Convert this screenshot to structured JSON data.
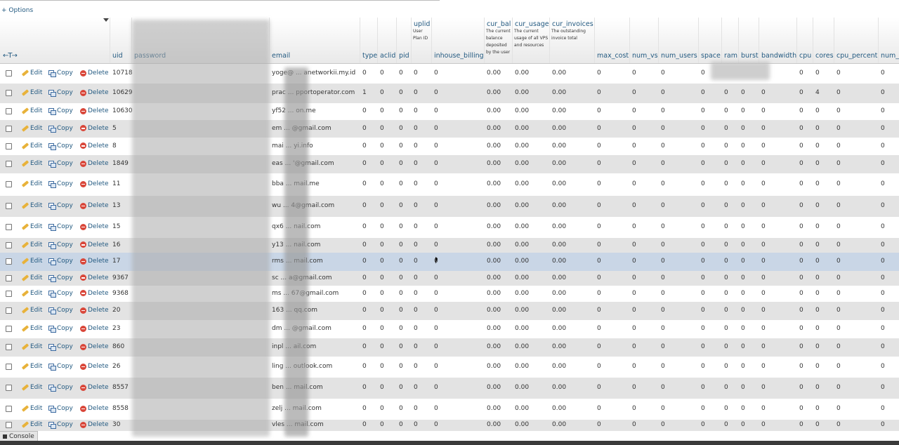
{
  "options_label": "+ Options",
  "columns": [
    {
      "key": "uid",
      "name": "uid",
      "comment": ""
    },
    {
      "key": "password",
      "name": "password",
      "comment": ""
    },
    {
      "key": "email",
      "name": "email",
      "comment": ""
    },
    {
      "key": "type",
      "name": "type",
      "comment": ""
    },
    {
      "key": "aclid",
      "name": "aclid",
      "comment": ""
    },
    {
      "key": "pid",
      "name": "pid",
      "comment": ""
    },
    {
      "key": "uplid",
      "name": "uplid",
      "comment": "User Plan ID"
    },
    {
      "key": "inhouse_billing",
      "name": "inhouse_billing",
      "comment": ""
    },
    {
      "key": "cur_bal",
      "name": "cur_bal",
      "comment": "The current balance deposited by the user"
    },
    {
      "key": "cur_usage",
      "name": "cur_usage",
      "comment": "The current usage of all VPS and resources"
    },
    {
      "key": "cur_invoices",
      "name": "cur_invoices",
      "comment": "The outstanding invoice total"
    },
    {
      "key": "max_cost",
      "name": "max_cost",
      "comment": ""
    },
    {
      "key": "num_vs",
      "name": "num_vs",
      "comment": ""
    },
    {
      "key": "num_users",
      "name": "num_users",
      "comment": ""
    },
    {
      "key": "space",
      "name": "space",
      "comment": ""
    },
    {
      "key": "ram",
      "name": "ram",
      "comment": ""
    },
    {
      "key": "burst",
      "name": "burst",
      "comment": ""
    },
    {
      "key": "bandwidth",
      "name": "bandwidth",
      "comment": ""
    },
    {
      "key": "cpu",
      "name": "cpu",
      "comment": ""
    },
    {
      "key": "cores",
      "name": "cores",
      "comment": ""
    },
    {
      "key": "cpu_percent",
      "name": "cpu_percent",
      "comment": ""
    },
    {
      "key": "num_",
      "name": "num_",
      "comment": ""
    }
  ],
  "actions": {
    "edit": "Edit",
    "copy": "Copy",
    "delete": "Delete"
  },
  "rows": [
    {
      "uid": "10718",
      "email": "yoge@ ... anetworkii.my.id",
      "type": "0",
      "aclid": "0",
      "pid": "0",
      "uplid": "0",
      "inhouse_billing": "0",
      "cur_bal": "0.00",
      "cur_usage": "0.00",
      "cur_invoices": "0.00",
      "max_cost": "0",
      "num_vs": "0",
      "num_users": "0",
      "space": "0",
      "ram": "",
      "burst": "",
      "bandwidth": "",
      "cpu": "0",
      "cores": "0",
      "cpu_percent": "0",
      "num_": "0"
    },
    {
      "uid": "10629",
      "email": "prac ... pportoperator.com",
      "type": "1",
      "aclid": "0",
      "pid": "0",
      "uplid": "0",
      "inhouse_billing": "0",
      "cur_bal": "0.00",
      "cur_usage": "0.00",
      "cur_invoices": "0.00",
      "max_cost": "0",
      "num_vs": "0",
      "num_users": "0",
      "space": "0",
      "ram": "0",
      "burst": "0",
      "bandwidth": "0",
      "cpu": "0",
      "cores": "4",
      "cpu_percent": "0",
      "num_": "0"
    },
    {
      "uid": "10630",
      "email": "yf52 ... on.me",
      "type": "0",
      "aclid": "0",
      "pid": "0",
      "uplid": "0",
      "inhouse_billing": "0",
      "cur_bal": "0.00",
      "cur_usage": "0.00",
      "cur_invoices": "0.00",
      "max_cost": "0",
      "num_vs": "0",
      "num_users": "0",
      "space": "0",
      "ram": "0",
      "burst": "0",
      "bandwidth": "0",
      "cpu": "0",
      "cores": "0",
      "cpu_percent": "0",
      "num_": "0"
    },
    {
      "uid": "5",
      "email": "em ... @gmail.com",
      "type": "0",
      "aclid": "0",
      "pid": "0",
      "uplid": "0",
      "inhouse_billing": "0",
      "cur_bal": "0.00",
      "cur_usage": "0.00",
      "cur_invoices": "0.00",
      "max_cost": "0",
      "num_vs": "0",
      "num_users": "0",
      "space": "0",
      "ram": "0",
      "burst": "0",
      "bandwidth": "0",
      "cpu": "0",
      "cores": "0",
      "cpu_percent": "0",
      "num_": "0"
    },
    {
      "uid": "8",
      "email": "mai ... yi.info",
      "type": "0",
      "aclid": "0",
      "pid": "0",
      "uplid": "0",
      "inhouse_billing": "0",
      "cur_bal": "0.00",
      "cur_usage": "0.00",
      "cur_invoices": "0.00",
      "max_cost": "0",
      "num_vs": "0",
      "num_users": "0",
      "space": "0",
      "ram": "0",
      "burst": "0",
      "bandwidth": "0",
      "cpu": "0",
      "cores": "0",
      "cpu_percent": "0",
      "num_": "0"
    },
    {
      "uid": "1849",
      "email": "eas ... '@gmail.com",
      "type": "0",
      "aclid": "0",
      "pid": "0",
      "uplid": "0",
      "inhouse_billing": "0",
      "cur_bal": "0.00",
      "cur_usage": "0.00",
      "cur_invoices": "0.00",
      "max_cost": "0",
      "num_vs": "0",
      "num_users": "0",
      "space": "0",
      "ram": "0",
      "burst": "0",
      "bandwidth": "0",
      "cpu": "0",
      "cores": "0",
      "cpu_percent": "0",
      "num_": "0"
    },
    {
      "uid": "11",
      "email": "bba ... mail.me",
      "type": "0",
      "aclid": "0",
      "pid": "0",
      "uplid": "0",
      "inhouse_billing": "0",
      "cur_bal": "0.00",
      "cur_usage": "0.00",
      "cur_invoices": "0.00",
      "max_cost": "0",
      "num_vs": "0",
      "num_users": "0",
      "space": "0",
      "ram": "0",
      "burst": "0",
      "bandwidth": "0",
      "cpu": "0",
      "cores": "0",
      "cpu_percent": "0",
      "num_": "0"
    },
    {
      "uid": "13",
      "email": "wu ... 4@gmail.com",
      "type": "0",
      "aclid": "0",
      "pid": "0",
      "uplid": "0",
      "inhouse_billing": "0",
      "cur_bal": "0.00",
      "cur_usage": "0.00",
      "cur_invoices": "0.00",
      "max_cost": "0",
      "num_vs": "0",
      "num_users": "0",
      "space": "0",
      "ram": "0",
      "burst": "0",
      "bandwidth": "0",
      "cpu": "0",
      "cores": "0",
      "cpu_percent": "0",
      "num_": "0"
    },
    {
      "uid": "15",
      "email": "qx6 ... nail.com",
      "type": "0",
      "aclid": "0",
      "pid": "0",
      "uplid": "0",
      "inhouse_billing": "0",
      "cur_bal": "0.00",
      "cur_usage": "0.00",
      "cur_invoices": "0.00",
      "max_cost": "0",
      "num_vs": "0",
      "num_users": "0",
      "space": "0",
      "ram": "0",
      "burst": "0",
      "bandwidth": "0",
      "cpu": "0",
      "cores": "0",
      "cpu_percent": "0",
      "num_": "0"
    },
    {
      "uid": "16",
      "email": "y13 ... nail.com",
      "type": "0",
      "aclid": "0",
      "pid": "0",
      "uplid": "0",
      "inhouse_billing": "0",
      "cur_bal": "0.00",
      "cur_usage": "0.00",
      "cur_invoices": "0.00",
      "max_cost": "0",
      "num_vs": "0",
      "num_users": "0",
      "space": "0",
      "ram": "0",
      "burst": "0",
      "bandwidth": "0",
      "cpu": "0",
      "cores": "0",
      "cpu_percent": "0",
      "num_": "0"
    },
    {
      "uid": "17",
      "email": "rms ... mail.com",
      "type": "0",
      "aclid": "0",
      "pid": "0",
      "uplid": "0",
      "inhouse_billing": "0",
      "cur_bal": "0.00",
      "cur_usage": "0.00",
      "cur_invoices": "0.00",
      "max_cost": "0",
      "num_vs": "0",
      "num_users": "0",
      "space": "0",
      "ram": "0",
      "burst": "0",
      "bandwidth": "0",
      "cpu": "0",
      "cores": "0",
      "cpu_percent": "0",
      "num_": "0",
      "highlight": true
    },
    {
      "uid": "9367",
      "email": "sc ... a@gmail.com",
      "type": "0",
      "aclid": "0",
      "pid": "0",
      "uplid": "0",
      "inhouse_billing": "0",
      "cur_bal": "0.00",
      "cur_usage": "0.00",
      "cur_invoices": "0.00",
      "max_cost": "0",
      "num_vs": "0",
      "num_users": "0",
      "space": "0",
      "ram": "0",
      "burst": "0",
      "bandwidth": "0",
      "cpu": "0",
      "cores": "0",
      "cpu_percent": "0",
      "num_": "0"
    },
    {
      "uid": "9368",
      "email": "ms ... 67@gmail.com",
      "type": "0",
      "aclid": "0",
      "pid": "0",
      "uplid": "0",
      "inhouse_billing": "0",
      "cur_bal": "0.00",
      "cur_usage": "0.00",
      "cur_invoices": "0.00",
      "max_cost": "0",
      "num_vs": "0",
      "num_users": "0",
      "space": "0",
      "ram": "0",
      "burst": "0",
      "bandwidth": "0",
      "cpu": "0",
      "cores": "0",
      "cpu_percent": "0",
      "num_": "0"
    },
    {
      "uid": "20",
      "email": "163 ... qq.com",
      "type": "0",
      "aclid": "0",
      "pid": "0",
      "uplid": "0",
      "inhouse_billing": "0",
      "cur_bal": "0.00",
      "cur_usage": "0.00",
      "cur_invoices": "0.00",
      "max_cost": "0",
      "num_vs": "0",
      "num_users": "0",
      "space": "0",
      "ram": "0",
      "burst": "0",
      "bandwidth": "0",
      "cpu": "0",
      "cores": "0",
      "cpu_percent": "0",
      "num_": "0"
    },
    {
      "uid": "23",
      "email": "dm ... @gmail.com",
      "type": "0",
      "aclid": "0",
      "pid": "0",
      "uplid": "0",
      "inhouse_billing": "0",
      "cur_bal": "0.00",
      "cur_usage": "0.00",
      "cur_invoices": "0.00",
      "max_cost": "0",
      "num_vs": "0",
      "num_users": "0",
      "space": "0",
      "ram": "0",
      "burst": "0",
      "bandwidth": "0",
      "cpu": "0",
      "cores": "0",
      "cpu_percent": "0",
      "num_": "0"
    },
    {
      "uid": "860",
      "email": "inpl ... ail.com",
      "type": "0",
      "aclid": "0",
      "pid": "0",
      "uplid": "0",
      "inhouse_billing": "0",
      "cur_bal": "0.00",
      "cur_usage": "0.00",
      "cur_invoices": "0.00",
      "max_cost": "0",
      "num_vs": "0",
      "num_users": "0",
      "space": "0",
      "ram": "0",
      "burst": "0",
      "bandwidth": "0",
      "cpu": "0",
      "cores": "0",
      "cpu_percent": "0",
      "num_": "0"
    },
    {
      "uid": "26",
      "email": "ling ... outlook.com",
      "type": "0",
      "aclid": "0",
      "pid": "0",
      "uplid": "0",
      "inhouse_billing": "0",
      "cur_bal": "0.00",
      "cur_usage": "0.00",
      "cur_invoices": "0.00",
      "max_cost": "0",
      "num_vs": "0",
      "num_users": "0",
      "space": "0",
      "ram": "0",
      "burst": "0",
      "bandwidth": "0",
      "cpu": "0",
      "cores": "0",
      "cpu_percent": "0",
      "num_": "0"
    },
    {
      "uid": "8557",
      "email": "ben ... mail.com",
      "type": "0",
      "aclid": "0",
      "pid": "0",
      "uplid": "0",
      "inhouse_billing": "0",
      "cur_bal": "0.00",
      "cur_usage": "0.00",
      "cur_invoices": "0.00",
      "max_cost": "0",
      "num_vs": "0",
      "num_users": "0",
      "space": "0",
      "ram": "0",
      "burst": "0",
      "bandwidth": "0",
      "cpu": "0",
      "cores": "0",
      "cpu_percent": "0",
      "num_": "0"
    },
    {
      "uid": "8558",
      "email": "zelj ... mail.com",
      "type": "0",
      "aclid": "0",
      "pid": "0",
      "uplid": "0",
      "inhouse_billing": "0",
      "cur_bal": "0.00",
      "cur_usage": "0.00",
      "cur_invoices": "0.00",
      "max_cost": "0",
      "num_vs": "0",
      "num_users": "0",
      "space": "0",
      "ram": "0",
      "burst": "0",
      "bandwidth": "0",
      "cpu": "0",
      "cores": "0",
      "cpu_percent": "0",
      "num_": "0"
    },
    {
      "uid": "30",
      "email": "vles ... mail.com",
      "type": "0",
      "aclid": "0",
      "pid": "0",
      "uplid": "0",
      "inhouse_billing": "0",
      "cur_bal": "0.00",
      "cur_usage": "0.00",
      "cur_invoices": "0.00",
      "max_cost": "0",
      "num_vs": "0",
      "num_users": "0",
      "space": "0",
      "ram": "0",
      "burst": "0",
      "bandwidth": "0",
      "cpu": "0",
      "cores": "0",
      "cpu_percent": "0",
      "num_": "0"
    }
  ],
  "console_label": "Console",
  "colors": {
    "link": "#235a81",
    "row_odd": "#ffffff",
    "row_even": "#e3e3e3",
    "row_highlight": "#c9d6e6"
  }
}
